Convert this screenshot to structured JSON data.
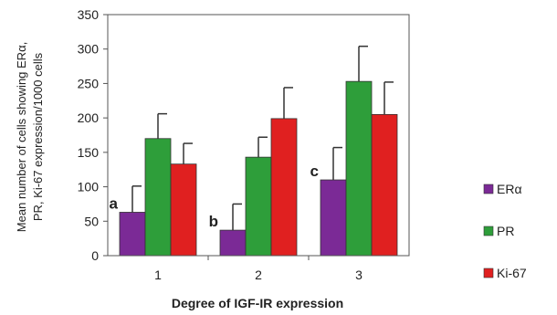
{
  "chart_data": {
    "type": "bar",
    "xlabel": "Degree of  IGF-IR  expression",
    "ylabel_line1": "Mean number of cells  showing ERα,",
    "ylabel_line2": "PR, Ki-67 expression/1000 cells",
    "categories": [
      "1",
      "2",
      "3"
    ],
    "ylim": [
      0,
      350
    ],
    "yticks": [
      0,
      50,
      100,
      150,
      200,
      250,
      300,
      350
    ],
    "grid": false,
    "legend_position": "right",
    "series": [
      {
        "name": "ERα",
        "color": "#7B2A96",
        "values": [
          63,
          37,
          110
        ],
        "errors": [
          38,
          38,
          47
        ]
      },
      {
        "name": "PR",
        "color": "#2E9E3A",
        "values": [
          170,
          143,
          253
        ],
        "errors": [
          36,
          29,
          51
        ]
      },
      {
        "name": "Ki-67",
        "color": "#E02020",
        "values": [
          133,
          199,
          205
        ],
        "errors": [
          30,
          45,
          47
        ]
      }
    ],
    "annotations": [
      {
        "label": "a",
        "category": "1"
      },
      {
        "label": "b",
        "category": "2"
      },
      {
        "label": "c",
        "category": "3"
      }
    ]
  }
}
